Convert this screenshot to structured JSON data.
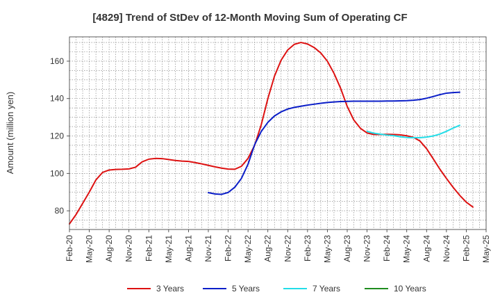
{
  "chart_data": {
    "type": "line",
    "title": "[4829]  Trend of StDev of 12-Month Moving Sum of Operating CF",
    "ylabel": "Amount (million yen)",
    "xlabel": "",
    "ylim": [
      70,
      173
    ],
    "yticks": [
      80,
      100,
      120,
      140,
      160
    ],
    "x_tick_labels": [
      "Feb-20",
      "May-20",
      "Aug-20",
      "Nov-20",
      "Feb-21",
      "May-21",
      "Aug-21",
      "Nov-21",
      "Feb-22",
      "May-22",
      "Aug-22",
      "Nov-22",
      "Feb-23",
      "May-23",
      "Aug-23",
      "Nov-23",
      "Feb-24",
      "May-24",
      "Aug-24",
      "Nov-24",
      "Feb-25",
      "May-25"
    ],
    "grid": true,
    "legend_position": "bottom",
    "series": [
      {
        "name": "3 Years",
        "color": "#dd1111",
        "start_index": 0,
        "values": [
          73,
          78,
          84,
          90,
          96.5,
          100.5,
          101.8,
          102.1,
          102.2,
          102.4,
          103.3,
          106.2,
          107.6,
          108,
          107.9,
          107.4,
          106.9,
          106.6,
          106.4,
          105.8,
          105.1,
          104.3,
          103.5,
          102.8,
          102.3,
          102.2,
          103.8,
          108,
          115,
          126,
          140,
          152,
          160.5,
          166,
          169,
          170,
          169.2,
          167.3,
          164.4,
          160,
          153.5,
          145.5,
          135.8,
          128.5,
          124.1,
          121.6,
          120.8,
          120.8,
          120.9,
          120.8,
          120.6,
          120.1,
          119.3,
          117.3,
          113.2,
          107.8,
          102.3,
          97.3,
          92.6,
          88.3,
          84.6,
          82
        ]
      },
      {
        "name": "5 Years",
        "color": "#0b1ec8",
        "start_index": 21,
        "values": [
          89.7,
          89,
          88.8,
          89.8,
          92.6,
          97.3,
          104.9,
          115.4,
          122.4,
          127.3,
          130.7,
          132.9,
          134.4,
          135.3,
          135.9,
          136.5,
          137,
          137.5,
          137.9,
          138.2,
          138.4,
          138.5,
          138.6,
          138.6,
          138.6,
          138.6,
          138.6,
          138.7,
          138.7,
          138.8,
          138.9,
          139.1,
          139.5,
          140.2,
          141.1,
          142.1,
          142.9,
          143.2,
          143.4
        ]
      },
      {
        "name": "7 Years",
        "color": "#22dde8",
        "start_index": 45,
        "values": [
          122.5,
          121.5,
          121,
          120.5,
          120.2,
          119.6,
          119.2,
          119.1,
          119.1,
          119.4,
          120,
          121,
          122.5,
          124.2,
          125.7
        ]
      },
      {
        "name": "10 Years",
        "color": "#1e8c1e",
        "start_index": 0,
        "values": []
      }
    ]
  }
}
